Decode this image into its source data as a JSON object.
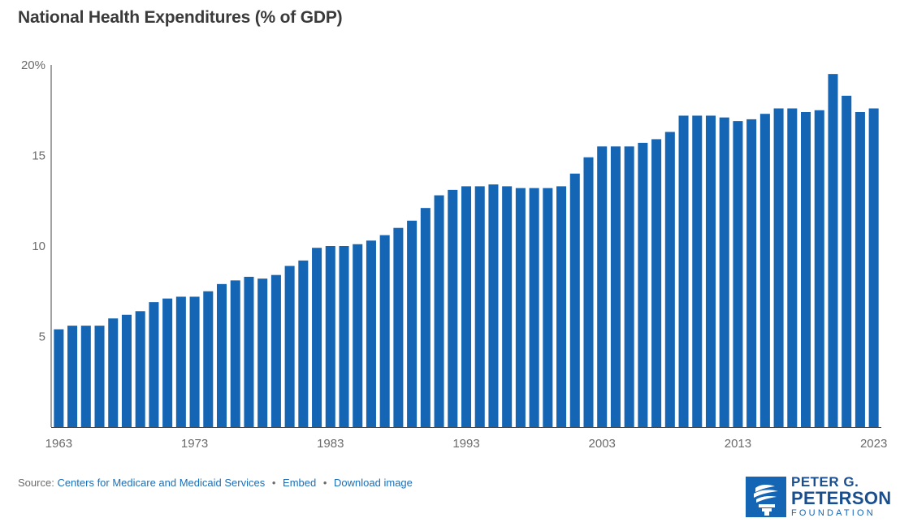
{
  "header": {
    "title": "National Health Expenditures (% of GDP)"
  },
  "chart_data": {
    "type": "bar",
    "title": "National Health Expenditures (% of GDP)",
    "xlabel": "",
    "ylabel": "",
    "x": [
      1963,
      1964,
      1965,
      1966,
      1967,
      1968,
      1969,
      1970,
      1971,
      1972,
      1973,
      1974,
      1975,
      1976,
      1977,
      1978,
      1979,
      1980,
      1981,
      1982,
      1983,
      1984,
      1985,
      1986,
      1987,
      1988,
      1989,
      1990,
      1991,
      1992,
      1993,
      1994,
      1995,
      1996,
      1997,
      1998,
      1999,
      2000,
      2001,
      2002,
      2003,
      2004,
      2005,
      2006,
      2007,
      2008,
      2009,
      2010,
      2011,
      2012,
      2013,
      2014,
      2015,
      2016,
      2017,
      2018,
      2019,
      2020,
      2021,
      2022,
      2023
    ],
    "values": [
      5.4,
      5.6,
      5.6,
      5.6,
      6.0,
      6.2,
      6.4,
      6.9,
      7.1,
      7.2,
      7.2,
      7.5,
      7.9,
      8.1,
      8.3,
      8.2,
      8.4,
      8.9,
      9.2,
      9.9,
      10.0,
      10.0,
      10.1,
      10.3,
      10.6,
      11.0,
      11.4,
      12.1,
      12.8,
      13.1,
      13.3,
      13.3,
      13.4,
      13.3,
      13.2,
      13.2,
      13.2,
      13.3,
      14.0,
      14.9,
      15.5,
      15.5,
      15.5,
      15.7,
      15.9,
      16.3,
      17.2,
      17.2,
      17.2,
      17.1,
      16.9,
      17.0,
      17.3,
      17.6,
      17.6,
      17.4,
      17.5,
      19.5,
      18.3,
      17.4,
      17.6
    ],
    "ylim": [
      0,
      20
    ],
    "y_ticks": [
      {
        "value": 5,
        "label": "5"
      },
      {
        "value": 10,
        "label": "10"
      },
      {
        "value": 15,
        "label": "15"
      },
      {
        "value": 20,
        "label": "20%"
      }
    ],
    "x_tick_labels": [
      "1963",
      "1973",
      "1983",
      "1993",
      "2003",
      "2013",
      "2023"
    ],
    "bar_color": "#1565b5",
    "grid": false
  },
  "footer": {
    "source_prefix": "Source:",
    "source_link": "Centers for Medicare and Medicaid Services",
    "embed": "Embed",
    "download": "Download image",
    "separator": "•"
  },
  "logo": {
    "line1": "PETER G.",
    "line2": "PETERSON",
    "line3": "FOUNDATION"
  },
  "colors": {
    "accent": "#1565b5",
    "link": "#1b6fb8"
  }
}
